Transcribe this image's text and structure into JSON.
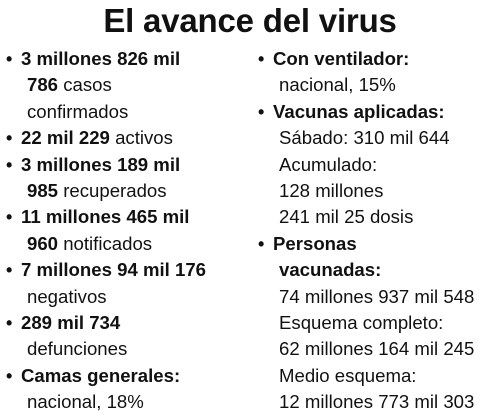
{
  "title": "El avance del virus",
  "left": [
    {
      "l1_bold": "3 millones 826 mil",
      "l2_bold": "786",
      "l2_text": " casos",
      "l3_text": "confirmados"
    },
    {
      "l1_bold": "22 mil 229",
      "l1_text": " activos"
    },
    {
      "l1_bold": "3 millones 189 mil",
      "l2_bold": "985",
      "l2_text": " recuperados"
    },
    {
      "l1_bold": "11 millones 465 mil",
      "l2_bold": "960",
      "l2_text": " notificados"
    },
    {
      "l1_bold": "7 millones 94 mil 176",
      "l2_text": "negativos"
    },
    {
      "l1_bold": "289 mil 734",
      "l2_text": "defunciones"
    },
    {
      "l1_bold": "Camas generales:",
      "l2_text": "nacional, 18%"
    }
  ],
  "right": [
    {
      "head": "Con ventilador:",
      "lines": [
        "nacional, 15%"
      ]
    },
    {
      "head": "Vacunas aplicadas:",
      "lines": [
        "Sábado: 310 mil 644",
        "Acumulado:",
        "128 millones",
        "241 mil 25 dosis"
      ]
    },
    {
      "head1": "Personas",
      "head2": "vacunadas:",
      "lines": [
        "74 millones 937 mil 548",
        "Esquema completo:",
        "62 millones 164 mil 245",
        "Medio esquema:",
        "12 millones 773 mil 303"
      ]
    }
  ]
}
